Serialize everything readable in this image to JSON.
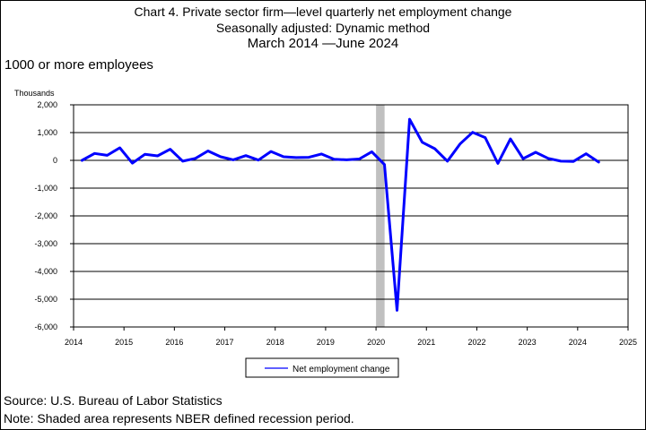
{
  "header": {
    "title_line1": "Chart 4. Private sector firm—level quarterly net employment change",
    "title_line2": "Seasonally adjusted: Dynamic method",
    "title_line3": "March 2014  —June 2024",
    "subset": "1000 or more employees"
  },
  "footer": {
    "source": "Source: U.S. Bureau of Labor Statistics",
    "note": "Note: Shaded area represents NBER defined recession period."
  },
  "chart_data": {
    "type": "line",
    "ylabel": "Thousands",
    "ylim": [
      -6000,
      2000
    ],
    "yticks": [
      2000,
      1000,
      0,
      -1000,
      -2000,
      -3000,
      -4000,
      -5000,
      -6000
    ],
    "ytick_labels": [
      "2,000",
      "1,000",
      "0",
      "-1,000",
      "-2,000",
      "-3,000",
      "-4,000",
      "-5,000",
      "-6,000"
    ],
    "xlim": [
      2014,
      2025
    ],
    "xticks": [
      2014,
      2015,
      2016,
      2017,
      2018,
      2019,
      2020,
      2021,
      2022,
      2023,
      2024,
      2025
    ],
    "xtick_labels": [
      "2014",
      "2015",
      "2016",
      "2017",
      "2018",
      "2019",
      "2020",
      "2021",
      "2022",
      "2023",
      "2024",
      "2025"
    ],
    "grid": "horizontal",
    "legend_position": "bottom-center",
    "recession_shading": {
      "start": 2020.0,
      "end": 2020.17
    },
    "colors": {
      "line": "#0000ff",
      "recession": "#c0c0c0",
      "grid": "#000000"
    },
    "series": [
      {
        "name": "Net employment change",
        "x": [
          "2014-03",
          "2014-06",
          "2014-09",
          "2014-12",
          "2015-03",
          "2015-06",
          "2015-09",
          "2015-12",
          "2016-03",
          "2016-06",
          "2016-09",
          "2016-12",
          "2017-03",
          "2017-06",
          "2017-09",
          "2017-12",
          "2018-03",
          "2018-06",
          "2018-09",
          "2018-12",
          "2019-03",
          "2019-06",
          "2019-09",
          "2019-12",
          "2020-03",
          "2020-06",
          "2020-09",
          "2020-12",
          "2021-03",
          "2021-06",
          "2021-09",
          "2021-12",
          "2022-03",
          "2022-06",
          "2022-09",
          "2022-12",
          "2023-03",
          "2023-06",
          "2023-09",
          "2023-12",
          "2024-03",
          "2024-06"
        ],
        "values": [
          0,
          250,
          180,
          450,
          -100,
          220,
          160,
          400,
          -30,
          70,
          340,
          130,
          20,
          170,
          10,
          320,
          130,
          100,
          110,
          230,
          40,
          20,
          50,
          310,
          -150,
          -5400,
          1480,
          650,
          420,
          -30,
          590,
          1010,
          820,
          -110,
          770,
          60,
          290,
          70,
          -30,
          -40,
          240,
          -60
        ]
      }
    ]
  }
}
